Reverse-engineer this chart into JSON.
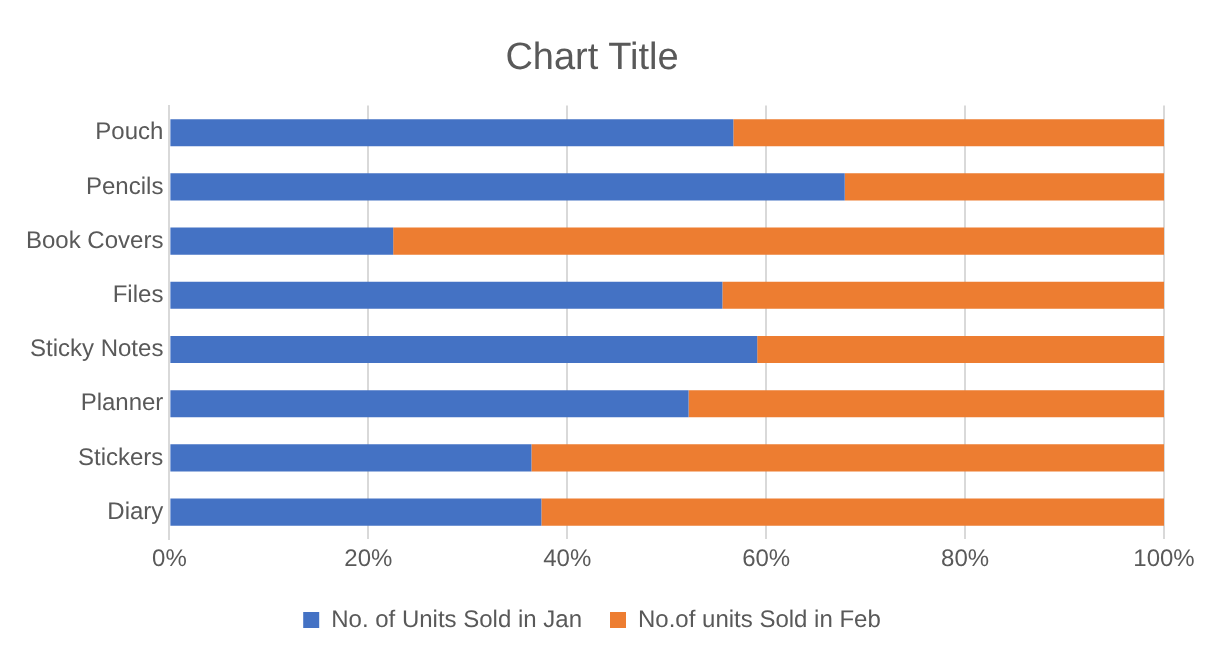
{
  "chart_data": {
    "type": "bar",
    "orientation": "horizontal",
    "stacked": true,
    "title": "Chart Title",
    "categories": [
      "Pouch",
      "Pencils",
      "Book Covers",
      "Files",
      "Sticky Notes",
      "Planner",
      "Stickers",
      "Diary"
    ],
    "series": [
      {
        "name": "No. of Units Sold in Jan",
        "color": "#4472c4",
        "values": [
          56.7,
          67.9,
          22.5,
          55.6,
          59.1,
          52.2,
          36.4,
          37.4
        ]
      },
      {
        "name": "No.of units Sold in Feb",
        "color": "#ed7d31",
        "values": [
          43.3,
          32.1,
          77.5,
          44.4,
          40.9,
          47.8,
          63.6,
          62.6
        ]
      }
    ],
    "xlim": [
      0,
      100
    ],
    "xticks": [
      {
        "value": 0,
        "label": "0%"
      },
      {
        "value": 20,
        "label": "20%"
      },
      {
        "value": 40,
        "label": "40%"
      },
      {
        "value": 60,
        "label": "60%"
      },
      {
        "value": 80,
        "label": "80%"
      },
      {
        "value": 100,
        "label": "100%"
      }
    ],
    "grid": "x",
    "legend": "bottom"
  }
}
